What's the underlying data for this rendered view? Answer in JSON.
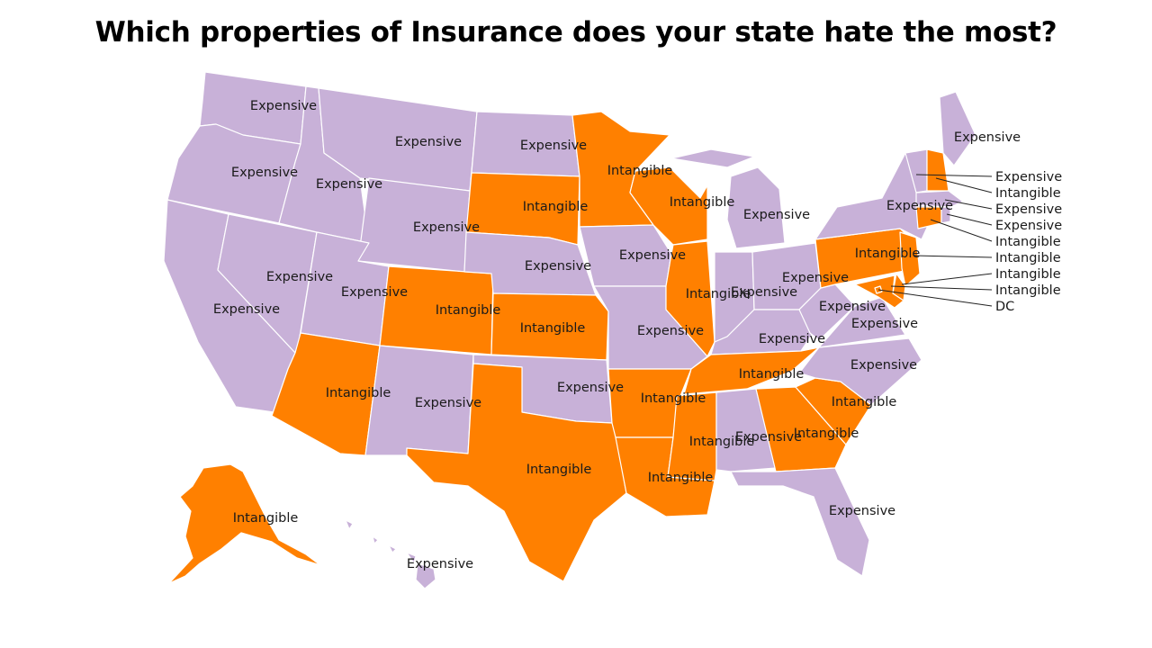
{
  "title": "Which properties of Insurance does your state hate the most?",
  "legend_colors": {
    "Expensive": "#c8b1d8",
    "Intangible": "#ff8000"
  },
  "states": [
    {
      "id": "WA",
      "value": "Expensive"
    },
    {
      "id": "OR",
      "value": "Expensive"
    },
    {
      "id": "CA",
      "value": "Expensive"
    },
    {
      "id": "NV",
      "value": "Expensive"
    },
    {
      "id": "ID",
      "value": "Expensive"
    },
    {
      "id": "MT",
      "value": "Expensive"
    },
    {
      "id": "WY",
      "value": "Expensive"
    },
    {
      "id": "UT",
      "value": "Expensive"
    },
    {
      "id": "AZ",
      "value": "Intangible"
    },
    {
      "id": "CO",
      "value": "Intangible"
    },
    {
      "id": "NM",
      "value": "Expensive"
    },
    {
      "id": "ND",
      "value": "Expensive"
    },
    {
      "id": "SD",
      "value": "Intangible"
    },
    {
      "id": "NE",
      "value": "Expensive"
    },
    {
      "id": "KS",
      "value": "Intangible"
    },
    {
      "id": "OK",
      "value": "Expensive"
    },
    {
      "id": "TX",
      "value": "Intangible"
    },
    {
      "id": "MN",
      "value": "Intangible"
    },
    {
      "id": "IA",
      "value": "Expensive"
    },
    {
      "id": "MO",
      "value": "Expensive"
    },
    {
      "id": "AR",
      "value": "Intangible"
    },
    {
      "id": "LA",
      "value": "Intangible"
    },
    {
      "id": "WI",
      "value": "Intangible"
    },
    {
      "id": "IL",
      "value": "Intangible"
    },
    {
      "id": "MI",
      "value": "Expensive"
    },
    {
      "id": "IN",
      "value": "Expensive"
    },
    {
      "id": "OH",
      "value": "Expensive"
    },
    {
      "id": "KY",
      "value": "Expensive"
    },
    {
      "id": "TN",
      "value": "Intangible"
    },
    {
      "id": "MS",
      "value": "Intangible"
    },
    {
      "id": "AL",
      "value": "Expensive"
    },
    {
      "id": "GA",
      "value": "Intangible"
    },
    {
      "id": "FL",
      "value": "Expensive"
    },
    {
      "id": "SC",
      "value": "Intangible"
    },
    {
      "id": "NC",
      "value": "Expensive"
    },
    {
      "id": "VA",
      "value": "Expensive"
    },
    {
      "id": "WV",
      "value": "Expensive"
    },
    {
      "id": "PA",
      "value": "Intangible"
    },
    {
      "id": "NY",
      "value": "Expensive"
    },
    {
      "id": "ME",
      "value": "Expensive"
    },
    {
      "id": "VT",
      "value": "Expensive"
    },
    {
      "id": "NH",
      "value": "Intangible"
    },
    {
      "id": "MA",
      "value": "Expensive"
    },
    {
      "id": "RI",
      "value": "Expensive"
    },
    {
      "id": "CT",
      "value": "Intangible"
    },
    {
      "id": "NJ",
      "value": "Intangible"
    },
    {
      "id": "DE",
      "value": "Intangible"
    },
    {
      "id": "MD",
      "value": "Intangible"
    },
    {
      "id": "DC",
      "value": "Intangible"
    },
    {
      "id": "AK",
      "value": "Intangible"
    },
    {
      "id": "HI",
      "value": "Expensive"
    }
  ],
  "callouts": [
    "Expensive",
    "Intangible",
    "Expensive",
    "Expensive",
    "Intangible",
    "Intangible",
    "Intangible",
    "Intangible",
    "DC"
  ]
}
